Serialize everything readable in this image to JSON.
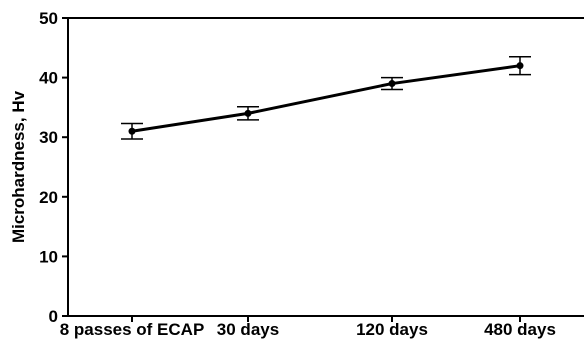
{
  "chart_data": {
    "type": "line",
    "xlabel": "",
    "ylabel": "Microhardness, Hv",
    "ylim": [
      0,
      50
    ],
    "yticks": [
      0,
      10,
      20,
      30,
      40,
      50
    ],
    "categories": [
      "8 passes of ECAP",
      "30 days",
      "120 days",
      "480 days"
    ],
    "series": [
      {
        "values": [
          31,
          34,
          39,
          42
        ],
        "error": [
          1.3,
          1.1,
          1.0,
          1.5
        ],
        "color": "#000000"
      }
    ],
    "grid": false,
    "legend": "none"
  }
}
